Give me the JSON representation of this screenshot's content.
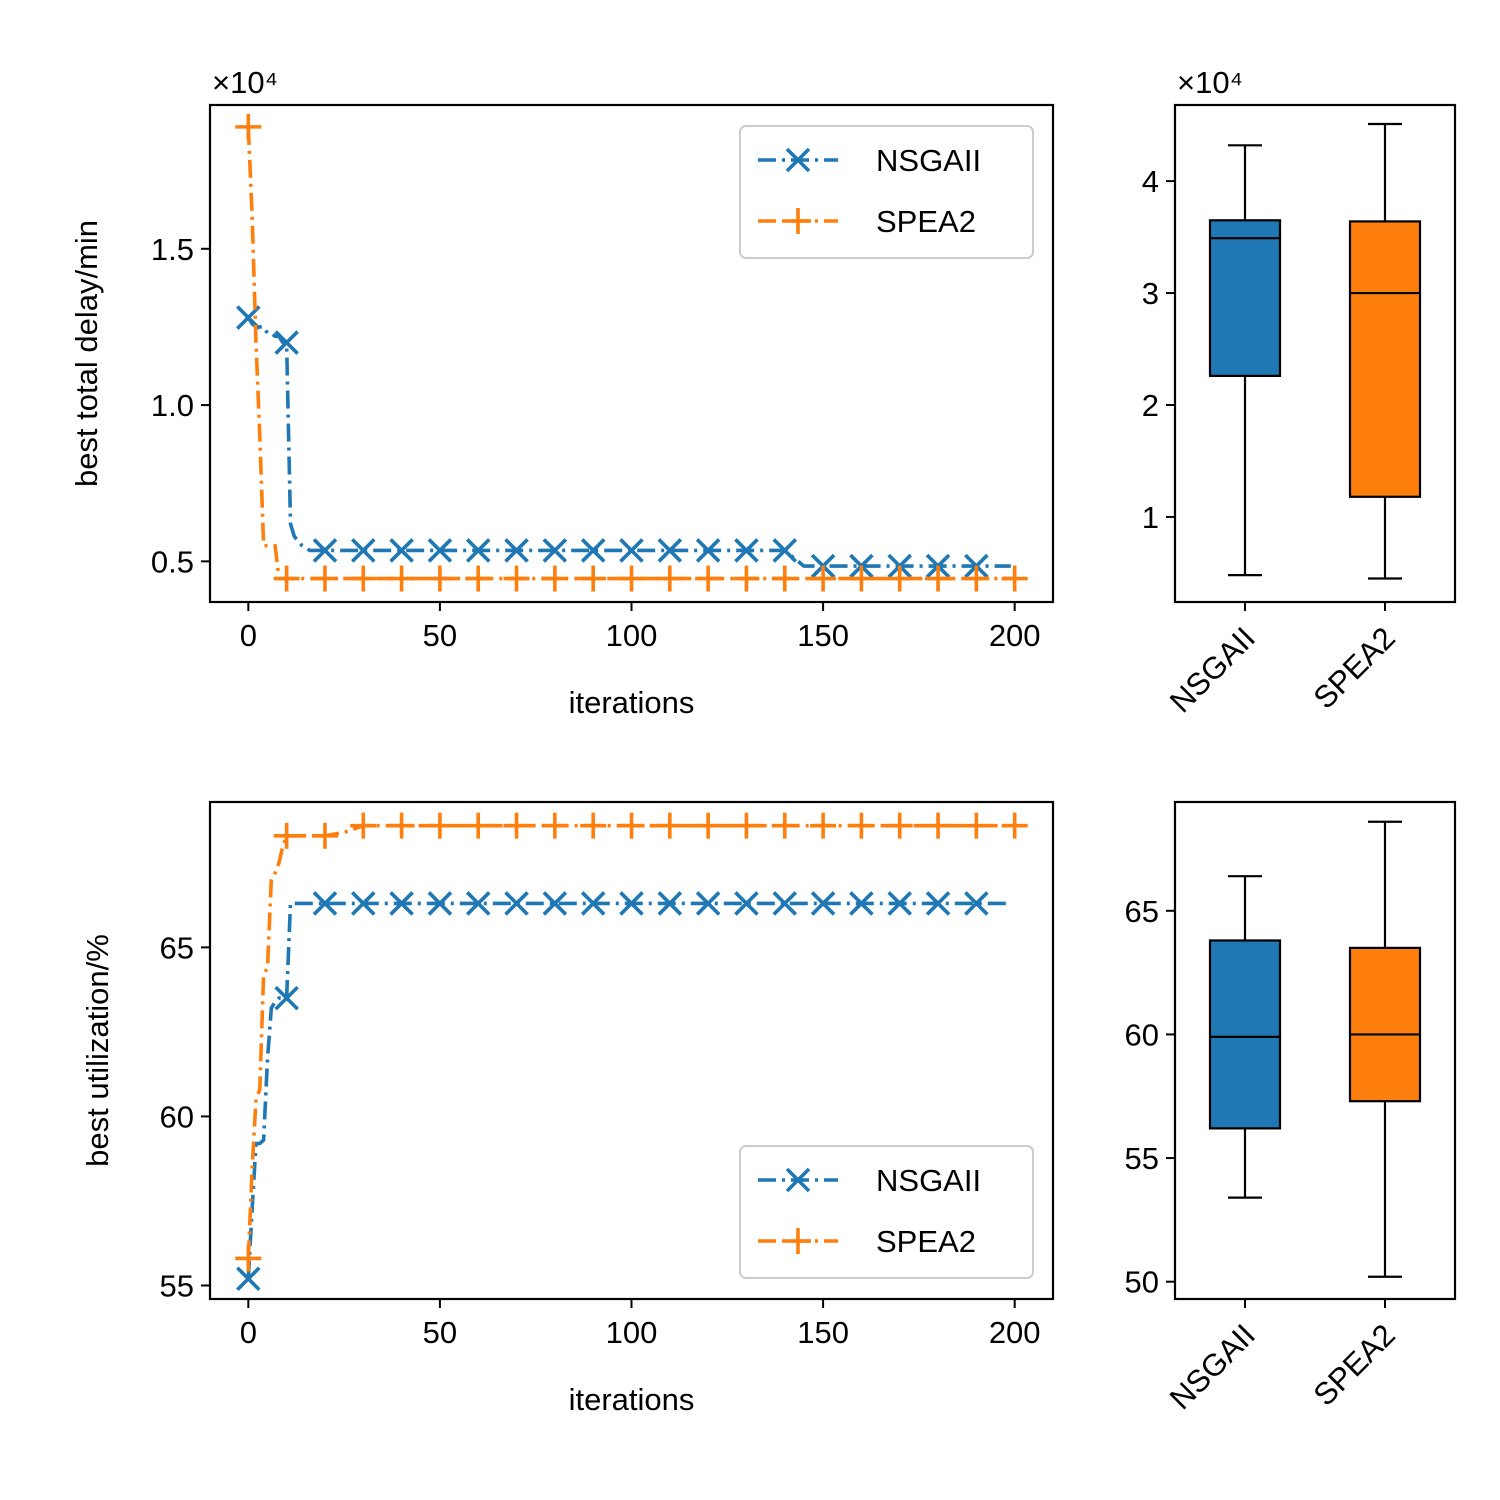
{
  "colors": {
    "NSGAII": "#1f77b4",
    "SPEA2": "#ff7f0e",
    "axis": "#000000",
    "legend_border": "#cccccc"
  },
  "chart_data": [
    {
      "id": "delay-line",
      "type": "line",
      "xlabel": "iterations",
      "ylabel": "best total delay/min",
      "offset_text": "×10⁴",
      "xlim": [
        -10,
        210
      ],
      "ylim": [
        3700,
        19600
      ],
      "xticks": [
        0,
        50,
        100,
        150,
        200
      ],
      "xtick_labels": [
        "0",
        "50",
        "100",
        "150",
        "200"
      ],
      "yticks": [
        5000,
        10000,
        15000
      ],
      "ytick_labels": [
        "0.5",
        "1.0",
        "1.5"
      ],
      "legend_position": "upper right",
      "series": [
        {
          "name": "NSGAII",
          "marker": "x",
          "line_style": "dashdot",
          "x": [
            0,
            1,
            2,
            3,
            4,
            5,
            6,
            7,
            8,
            9,
            10,
            11,
            12,
            14,
            16,
            18,
            20,
            30,
            40,
            50,
            60,
            70,
            80,
            90,
            100,
            110,
            120,
            130,
            140,
            145,
            150,
            160,
            170,
            180,
            190,
            199
          ],
          "y": [
            12800,
            12600,
            12500,
            12500,
            12500,
            12300,
            12300,
            12200,
            12200,
            12000,
            12000,
            6200,
            5800,
            5500,
            5350,
            5350,
            5350,
            5350,
            5350,
            5350,
            5350,
            5350,
            5350,
            5350,
            5350,
            5350,
            5350,
            5350,
            5350,
            4850,
            4850,
            4850,
            4850,
            4850,
            4850,
            4850
          ]
        },
        {
          "name": "SPEA2",
          "marker": "+",
          "line_style": "dashdot",
          "x": [
            0,
            1,
            2,
            3,
            4,
            5,
            6,
            7,
            8,
            9,
            10,
            20,
            30,
            40,
            50,
            60,
            70,
            80,
            90,
            100,
            110,
            120,
            130,
            140,
            150,
            160,
            170,
            180,
            190,
            200
          ],
          "y": [
            18900,
            16000,
            12000,
            9000,
            5500,
            5500,
            5500,
            5500,
            4450,
            4450,
            4450,
            4450,
            4450,
            4450,
            4450,
            4450,
            4450,
            4450,
            4450,
            4450,
            4450,
            4450,
            4450,
            4450,
            4450,
            4450,
            4450,
            4450,
            4450,
            4450
          ]
        }
      ],
      "markers_at": {
        "NSGAII": [
          [
            0,
            12800
          ],
          [
            10,
            12000
          ],
          [
            20,
            5350
          ],
          [
            30,
            5350
          ],
          [
            40,
            5350
          ],
          [
            50,
            5350
          ],
          [
            60,
            5350
          ],
          [
            70,
            5350
          ],
          [
            80,
            5350
          ],
          [
            90,
            5350
          ],
          [
            100,
            5350
          ],
          [
            110,
            5350
          ],
          [
            120,
            5350
          ],
          [
            130,
            5350
          ],
          [
            140,
            5350
          ],
          [
            150,
            4850
          ],
          [
            160,
            4850
          ],
          [
            170,
            4850
          ],
          [
            180,
            4850
          ],
          [
            190,
            4850
          ]
        ],
        "SPEA2": [
          [
            0,
            18900
          ],
          [
            10,
            4450
          ],
          [
            20,
            4450
          ],
          [
            30,
            4450
          ],
          [
            40,
            4450
          ],
          [
            50,
            4450
          ],
          [
            60,
            4450
          ],
          [
            70,
            4450
          ],
          [
            80,
            4450
          ],
          [
            90,
            4450
          ],
          [
            100,
            4450
          ],
          [
            110,
            4450
          ],
          [
            120,
            4450
          ],
          [
            130,
            4450
          ],
          [
            140,
            4450
          ],
          [
            150,
            4450
          ],
          [
            160,
            4450
          ],
          [
            170,
            4450
          ],
          [
            180,
            4450
          ],
          [
            190,
            4450
          ],
          [
            200,
            4450
          ]
        ]
      }
    },
    {
      "id": "delay-box",
      "type": "box",
      "offset_text": "×10⁴",
      "ylim": [
        2400,
        46800
      ],
      "yticks": [
        10000,
        20000,
        30000,
        40000
      ],
      "ytick_labels": [
        "1",
        "2",
        "3",
        "4"
      ],
      "categories": [
        "NSGAII",
        "SPEA2"
      ],
      "boxes": [
        {
          "name": "NSGAII",
          "whislo": 4800,
          "q1": 22600,
          "median": 34900,
          "q3": 36500,
          "whishi": 43200
        },
        {
          "name": "SPEA2",
          "whislo": 4500,
          "q1": 11800,
          "median": 30000,
          "q3": 36400,
          "whishi": 45100
        }
      ]
    },
    {
      "id": "util-line",
      "type": "line",
      "xlabel": "iterations",
      "ylabel": "best utilization/%",
      "xlim": [
        -10,
        210
      ],
      "ylim": [
        54.6,
        69.3
      ],
      "xticks": [
        0,
        50,
        100,
        150,
        200
      ],
      "xtick_labels": [
        "0",
        "50",
        "100",
        "150",
        "200"
      ],
      "yticks": [
        55,
        60,
        65
      ],
      "ytick_labels": [
        "55",
        "60",
        "65"
      ],
      "legend_position": "lower right",
      "series": [
        {
          "name": "NSGAII",
          "marker": "x",
          "line_style": "dashdot",
          "x": [
            0,
            1,
            2,
            3,
            4,
            5,
            6,
            7,
            8,
            9,
            10,
            11,
            20,
            30,
            40,
            50,
            60,
            70,
            80,
            90,
            100,
            110,
            120,
            130,
            140,
            150,
            160,
            170,
            180,
            190,
            199
          ],
          "y": [
            55.2,
            57.3,
            59.2,
            59.2,
            59.3,
            61.7,
            63.2,
            63.4,
            63.5,
            63.5,
            63.5,
            66.3,
            66.3,
            66.3,
            66.3,
            66.3,
            66.3,
            66.3,
            66.3,
            66.3,
            66.3,
            66.3,
            66.3,
            66.3,
            66.3,
            66.3,
            66.3,
            66.3,
            66.3,
            66.3,
            66.3
          ]
        },
        {
          "name": "SPEA2",
          "marker": "+",
          "line_style": "dashdot",
          "x": [
            0,
            1,
            2,
            3,
            4,
            5,
            6,
            7,
            8,
            9,
            10,
            15,
            20,
            25,
            30,
            40,
            50,
            60,
            70,
            80,
            90,
            100,
            110,
            120,
            130,
            140,
            150,
            160,
            170,
            180,
            190,
            200
          ],
          "y": [
            55.8,
            58.5,
            60.5,
            60.8,
            64.2,
            64.4,
            67.0,
            67.2,
            67.5,
            68.0,
            68.3,
            68.3,
            68.3,
            68.4,
            68.6,
            68.6,
            68.6,
            68.6,
            68.6,
            68.6,
            68.6,
            68.6,
            68.6,
            68.6,
            68.6,
            68.6,
            68.6,
            68.6,
            68.6,
            68.6,
            68.6,
            68.6
          ]
        }
      ],
      "markers_at": {
        "NSGAII": [
          [
            0,
            55.2
          ],
          [
            10,
            63.5
          ],
          [
            20,
            66.3
          ],
          [
            30,
            66.3
          ],
          [
            40,
            66.3
          ],
          [
            50,
            66.3
          ],
          [
            60,
            66.3
          ],
          [
            70,
            66.3
          ],
          [
            80,
            66.3
          ],
          [
            90,
            66.3
          ],
          [
            100,
            66.3
          ],
          [
            110,
            66.3
          ],
          [
            120,
            66.3
          ],
          [
            130,
            66.3
          ],
          [
            140,
            66.3
          ],
          [
            150,
            66.3
          ],
          [
            160,
            66.3
          ],
          [
            170,
            66.3
          ],
          [
            180,
            66.3
          ],
          [
            190,
            66.3
          ]
        ],
        "SPEA2": [
          [
            0,
            55.8
          ],
          [
            10,
            68.3
          ],
          [
            20,
            68.3
          ],
          [
            30,
            68.6
          ],
          [
            40,
            68.6
          ],
          [
            50,
            68.6
          ],
          [
            60,
            68.6
          ],
          [
            70,
            68.6
          ],
          [
            80,
            68.6
          ],
          [
            90,
            68.6
          ],
          [
            100,
            68.6
          ],
          [
            110,
            68.6
          ],
          [
            120,
            68.6
          ],
          [
            130,
            68.6
          ],
          [
            140,
            68.6
          ],
          [
            150,
            68.6
          ],
          [
            160,
            68.6
          ],
          [
            170,
            68.6
          ],
          [
            180,
            68.6
          ],
          [
            190,
            68.6
          ],
          [
            200,
            68.6
          ]
        ]
      }
    },
    {
      "id": "util-box",
      "type": "box",
      "ylim": [
        49.3,
        69.4
      ],
      "yticks": [
        50,
        55,
        60,
        65
      ],
      "ytick_labels": [
        "50",
        "55",
        "60",
        "65"
      ],
      "categories": [
        "NSGAII",
        "SPEA2"
      ],
      "boxes": [
        {
          "name": "NSGAII",
          "whislo": 53.4,
          "q1": 56.2,
          "median": 59.9,
          "q3": 63.8,
          "whishi": 66.4
        },
        {
          "name": "SPEA2",
          "whislo": 50.2,
          "q1": 57.3,
          "median": 60.0,
          "q3": 63.5,
          "whishi": 68.6
        }
      ]
    }
  ]
}
